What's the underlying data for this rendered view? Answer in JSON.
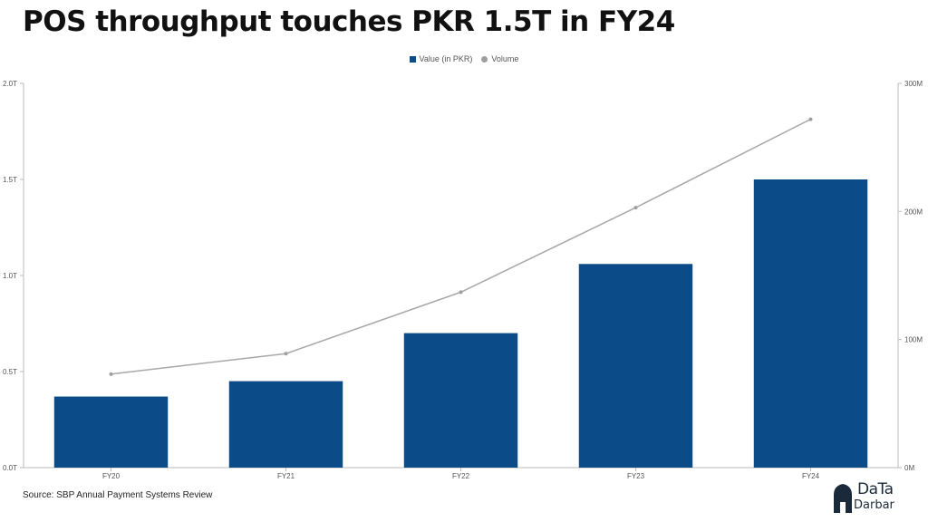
{
  "title": "POS throughput touches PKR 1.5T in FY24",
  "source": "Source: SBP Annual Payment Systems Review",
  "logo": {
    "line1": "DaTa",
    "line2": "Darbar"
  },
  "legend": {
    "bar_label": "Value (in PKR)",
    "line_label": "Volume"
  },
  "colors": {
    "bar": "#0b4b87",
    "line": "#a8a8a8",
    "grid": "#dddddd",
    "axis_text": "#555555"
  },
  "chart_data": {
    "type": "bar",
    "categories": [
      "FY20",
      "FY21",
      "FY22",
      "FY23",
      "FY24"
    ],
    "series": [
      {
        "name": "Value (in PKR)",
        "type": "bar",
        "axis": "left",
        "values": [
          0.37,
          0.45,
          0.7,
          1.06,
          1.5
        ]
      },
      {
        "name": "Volume",
        "type": "line",
        "axis": "right",
        "values": [
          73,
          89,
          137,
          203,
          272
        ]
      }
    ],
    "left_axis": {
      "ticks": [
        "0.0T",
        "0.5T",
        "1.0T",
        "1.5T",
        "2.0T"
      ],
      "tick_values": [
        0,
        0.5,
        1.0,
        1.5,
        2.0
      ],
      "ylim": [
        0,
        2.0
      ]
    },
    "right_axis": {
      "ticks": [
        "0M",
        "100M",
        "200M",
        "300M"
      ],
      "tick_values": [
        0,
        100,
        200,
        300
      ],
      "ylim": [
        0,
        300
      ]
    },
    "grid": false,
    "legend_position": "top-center"
  }
}
